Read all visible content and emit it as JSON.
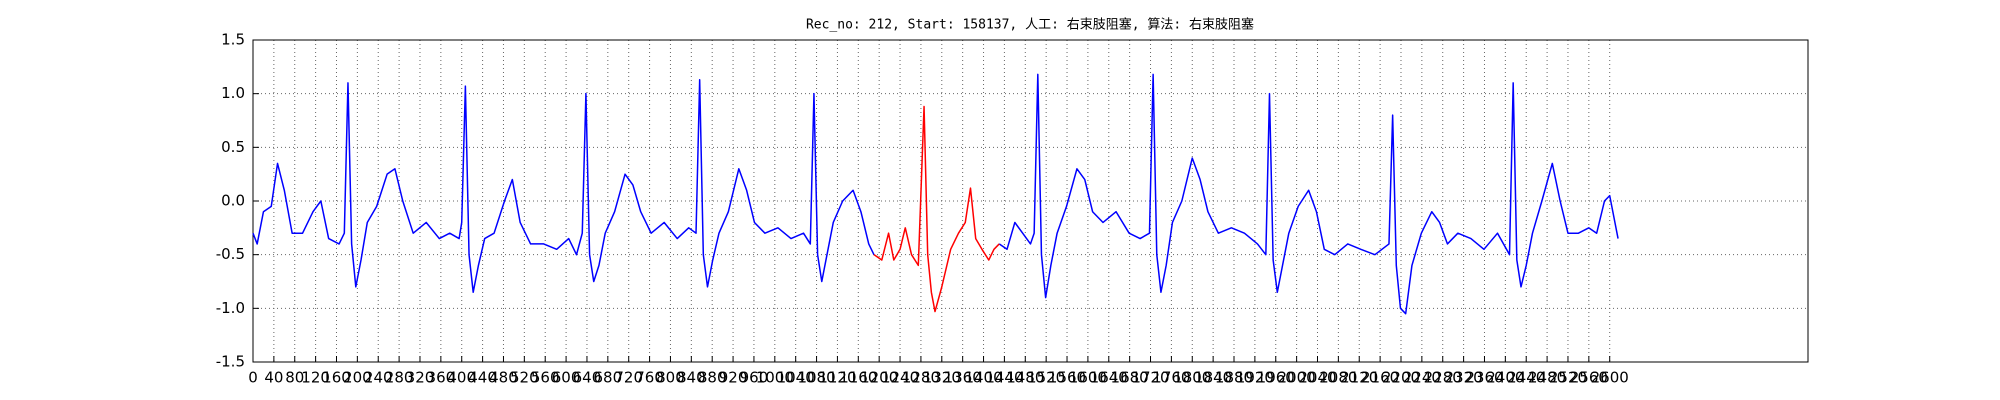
{
  "chart_data": {
    "type": "line",
    "title": "Rec_no: 212, Start: 158137, 人工: 右束肢阻塞, 算法: 右束肢阻塞",
    "xlim": [
      0,
      2980
    ],
    "ylim": [
      -1.5,
      1.5
    ],
    "xticks": [
      0,
      40,
      80,
      120,
      160,
      200,
      240,
      280,
      320,
      360,
      400,
      440,
      480,
      520,
      560,
      600,
      640,
      680,
      720,
      760,
      800,
      840,
      880,
      920,
      960,
      1000,
      1040,
      1080,
      1120,
      1160,
      1200,
      1240,
      1280,
      1320,
      1360,
      1400,
      1440,
      1480,
      1520,
      1560,
      1600,
      1640,
      1680,
      1720,
      1760,
      1800,
      1840,
      1880,
      1920,
      1960,
      2000,
      2040,
      2080,
      2120,
      2160,
      2200,
      2240,
      2280,
      2320,
      2360,
      2400,
      2440,
      2480,
      2520,
      2560,
      2600
    ],
    "yticks": [
      {
        "value": -1.5,
        "label": "-1.5"
      },
      {
        "value": -1,
        "label": "-1.0"
      },
      -0.5,
      {
        "value": 0,
        "label": "0.0"
      },
      0.5,
      {
        "value": 1,
        "label": "1.0"
      },
      1.5
    ],
    "grid": true,
    "series": [
      {
        "color": "#0000ff",
        "x": [
          0,
          8,
          20,
          35,
          47,
          60,
          75,
          95,
          115,
          130,
          145,
          165,
          175,
          182,
          189,
          197,
          207,
          219,
          237,
          257,
          272,
          287,
          307,
          332,
          357,
          377,
          395,
          400,
          407,
          414,
          422,
          432,
          444,
          462,
          482,
          497,
          512,
          532,
          557,
          582,
          605,
          620,
          631,
          638,
          645,
          653,
          663,
          675,
          693,
          713,
          728,
          743,
          763,
          788,
          813,
          835,
          849,
          856,
          863,
          871,
          881,
          893,
          911,
          931,
          946,
          961,
          981,
          1006,
          1031,
          1055,
          1068,
          1075,
          1082,
          1090,
          1100,
          1112,
          1130,
          1150,
          1165,
          1180,
          1190,
          1300,
          1430,
          1445,
          1460,
          1475,
          1490,
          1497,
          1504,
          1511,
          1519,
          1529,
          1541,
          1559,
          1579,
          1594,
          1609,
          1629,
          1654,
          1679,
          1700,
          1718,
          1725,
          1732,
          1740,
          1750,
          1762,
          1780,
          1800,
          1815,
          1830,
          1850,
          1875,
          1900,
          1925,
          1941,
          1948,
          1955,
          1963,
          1973,
          1985,
          2003,
          2023,
          2038,
          2053,
          2073,
          2098,
          2123,
          2150,
          2177,
          2184,
          2191,
          2199,
          2209,
          2221,
          2239,
          2259,
          2274,
          2289,
          2309,
          2334,
          2359,
          2385,
          2408,
          2415,
          2422,
          2430,
          2440,
          2452,
          2470,
          2490,
          2505,
          2520,
          2540,
          2560,
          2575,
          2590,
          2600,
          2610,
          2616
        ],
        "values": [
          -0.3,
          -0.4,
          -0.1,
          -0.05,
          0.35,
          0.1,
          -0.3,
          -0.3,
          -0.1,
          0.0,
          -0.35,
          -0.4,
          -0.3,
          1.1,
          -0.4,
          -0.8,
          -0.55,
          -0.2,
          -0.05,
          0.25,
          0.3,
          0.0,
          -0.3,
          -0.2,
          -0.35,
          -0.3,
          -0.35,
          -0.2,
          1.07,
          -0.5,
          -0.85,
          -0.6,
          -0.35,
          -0.3,
          0.0,
          0.2,
          -0.2,
          -0.4,
          -0.4,
          -0.45,
          -0.35,
          -0.5,
          -0.3,
          1.0,
          -0.5,
          -0.75,
          -0.6,
          -0.3,
          -0.1,
          0.25,
          0.15,
          -0.1,
          -0.3,
          -0.2,
          -0.35,
          -0.25,
          -0.3,
          1.13,
          -0.5,
          -0.8,
          -0.55,
          -0.3,
          -0.1,
          0.3,
          0.1,
          -0.2,
          -0.3,
          -0.25,
          -0.35,
          -0.3,
          -0.4,
          1.0,
          -0.5,
          -0.75,
          -0.5,
          -0.2,
          0.0,
          0.1,
          -0.1,
          -0.4,
          -0.5,
          null,
          -0.4,
          -0.45,
          -0.2,
          -0.3,
          -0.4,
          -0.3,
          1.18,
          -0.5,
          -0.9,
          -0.6,
          -0.3,
          -0.05,
          0.3,
          0.2,
          -0.1,
          -0.2,
          -0.1,
          -0.3,
          -0.35,
          -0.3,
          1.18,
          -0.5,
          -0.85,
          -0.6,
          -0.2,
          0.0,
          0.4,
          0.2,
          -0.1,
          -0.3,
          -0.25,
          -0.3,
          -0.4,
          -0.5,
          1.0,
          -0.55,
          -0.85,
          -0.6,
          -0.3,
          -0.05,
          0.1,
          -0.1,
          -0.45,
          -0.5,
          -0.4,
          -0.45,
          -0.5,
          -0.4,
          0.8,
          -0.6,
          -1.0,
          -1.05,
          -0.6,
          -0.3,
          -0.1,
          -0.2,
          -0.4,
          -0.3,
          -0.35,
          -0.45,
          -0.3,
          -0.5,
          1.1,
          -0.55,
          -0.8,
          -0.6,
          -0.3,
          0.0,
          0.35,
          0.0,
          -0.3,
          -0.3,
          -0.25,
          -0.3,
          0.0,
          0.05,
          -0.2,
          -0.35
        ]
      },
      {
        "color": "#ff0000",
        "x": [
          1190,
          1205,
          1218,
          1228,
          1240,
          1250,
          1262,
          1275,
          1286,
          1293,
          1300,
          1307,
          1320,
          1337,
          1352,
          1365,
          1375,
          1385,
          1397,
          1410,
          1420,
          1430
        ],
        "values": [
          -0.5,
          -0.55,
          -0.3,
          -0.55,
          -0.45,
          -0.25,
          -0.5,
          -0.6,
          0.88,
          -0.5,
          -0.85,
          -1.03,
          -0.8,
          -0.45,
          -0.3,
          -0.2,
          0.12,
          -0.35,
          -0.45,
          -0.55,
          -0.45,
          -0.4
        ]
      }
    ]
  }
}
